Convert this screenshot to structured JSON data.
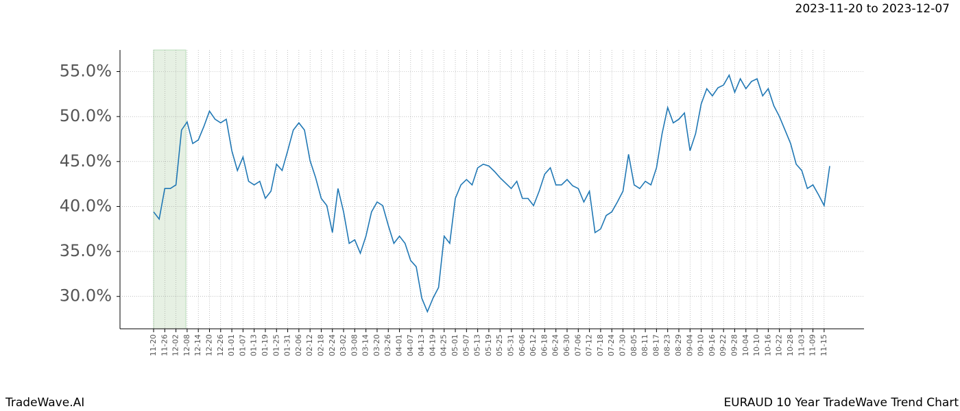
{
  "chart_data": {
    "type": "line",
    "subtitle": "2023-11-20 to 2023-12-07",
    "footer_left": "TradeWave.AI",
    "footer_right": "EURAUD 10 Year TradeWave Trend Chart",
    "categories": [
      "11-20",
      null,
      "11-26",
      null,
      "12-02",
      null,
      "12-08",
      null,
      "12-14",
      null,
      "12-20",
      null,
      "12-26",
      null,
      "01-01",
      null,
      "01-07",
      null,
      "01-13",
      null,
      "01-19",
      null,
      "01-25",
      null,
      "01-31",
      null,
      "02-06",
      null,
      "02-12",
      null,
      "02-18",
      null,
      "02-24",
      null,
      "03-02",
      null,
      "03-08",
      null,
      "03-14",
      null,
      "03-20",
      null,
      "03-26",
      null,
      "04-01",
      null,
      "04-07",
      null,
      "04-13",
      null,
      "04-19",
      null,
      "04-25",
      null,
      "05-01",
      null,
      "05-07",
      null,
      "05-13",
      null,
      "05-19",
      null,
      "05-25",
      null,
      "05-31",
      null,
      "06-06",
      null,
      "06-12",
      null,
      "06-18",
      null,
      "06-24",
      null,
      "06-30",
      null,
      "07-06",
      null,
      "07-12",
      null,
      "07-18",
      null,
      "07-24",
      null,
      "07-30",
      null,
      "08-05",
      null,
      "08-11",
      null,
      "08-17",
      null,
      "08-23",
      null,
      "08-29",
      null,
      "09-04",
      null,
      "09-10",
      null,
      "09-16",
      null,
      "09-22",
      null,
      "09-28",
      null,
      "10-04",
      null,
      "10-10",
      null,
      "10-16",
      null,
      "10-22",
      null,
      "10-28",
      null,
      "11-03",
      null,
      "11-09",
      null,
      "11-15",
      null
    ],
    "series": [
      {
        "color": "#1f77b4",
        "values": [
          39.4,
          38.6,
          42.0,
          42.0,
          42.4,
          48.5,
          49.4,
          47.0,
          47.4,
          48.9,
          50.6,
          49.7,
          49.3,
          49.7,
          46.2,
          44.0,
          45.5,
          42.8,
          42.4,
          42.8,
          40.9,
          41.7,
          44.7,
          44.0,
          46.2,
          48.5,
          49.3,
          48.5,
          45.1,
          43.2,
          40.9,
          40.1,
          37.1,
          42.0,
          39.4,
          35.9,
          36.3,
          34.8,
          36.7,
          39.4,
          40.5,
          40.1,
          37.9,
          35.9,
          36.7,
          35.9,
          34.0,
          33.3,
          29.8,
          28.3,
          29.8,
          31.0,
          36.7,
          35.9,
          40.9,
          42.4,
          43.0,
          42.4,
          44.3,
          44.7,
          44.5,
          43.9,
          43.2,
          42.6,
          42.0,
          42.8,
          40.9,
          40.9,
          40.1,
          41.7,
          43.6,
          44.3,
          42.4,
          42.4,
          43.0,
          42.3,
          42.0,
          40.5,
          41.7,
          37.1,
          37.5,
          39.0,
          39.4,
          40.5,
          41.7,
          45.8,
          42.4,
          42.0,
          42.8,
          42.4,
          44.3,
          48.1,
          51.0,
          49.3,
          49.7,
          50.4,
          46.2,
          48.1,
          51.4,
          53.1,
          52.3,
          53.2,
          53.5,
          54.6,
          52.7,
          54.2,
          53.1,
          53.9,
          54.2,
          52.3,
          53.1,
          51.2,
          50.0,
          48.5,
          47.0,
          44.7,
          44.0,
          42.0,
          42.4,
          41.3,
          40.1,
          44.5
        ]
      }
    ],
    "ylim": [
      26.4,
      57.4
    ],
    "yticks": [
      {
        "value": 30,
        "label": "30.0%"
      },
      {
        "value": 35,
        "label": "35.0%"
      },
      {
        "value": 40,
        "label": "40.0%"
      },
      {
        "value": 45,
        "label": "45.0%"
      },
      {
        "value": 50,
        "label": "50.0%"
      },
      {
        "value": 55,
        "label": "55.0%"
      }
    ],
    "grid": true
  }
}
